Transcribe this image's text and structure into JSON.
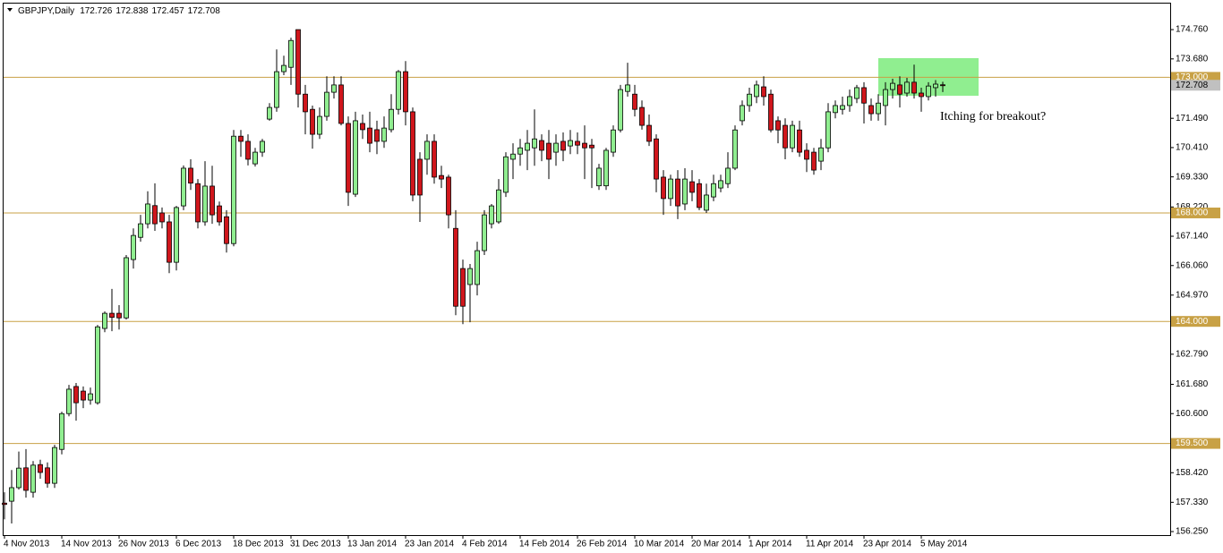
{
  "chart_data": {
    "type": "candlestick",
    "title": "GBPJPY,Daily",
    "annotation": "Itching for breakout?",
    "up_color": "#90ee90",
    "down_color": "#d0161c",
    "level_color": "#c8a145",
    "ylim": [
      156.12,
      175.72
    ],
    "yticks": [
      {
        "value": 174.76,
        "label": "174.760"
      },
      {
        "value": 173.68,
        "label": "173.680"
      },
      {
        "value": 171.49,
        "label": "171.490"
      },
      {
        "value": 170.41,
        "label": "170.410"
      },
      {
        "value": 169.33,
        "label": "169.330"
      },
      {
        "value": 168.22,
        "label": "168.220"
      },
      {
        "value": 167.14,
        "label": "167.140"
      },
      {
        "value": 166.06,
        "label": "166.060"
      },
      {
        "value": 164.97,
        "label": "164.970"
      },
      {
        "value": 162.79,
        "label": "162.790"
      },
      {
        "value": 161.68,
        "label": "161.680"
      },
      {
        "value": 160.6,
        "label": "160.600"
      },
      {
        "value": 158.42,
        "label": "158.420"
      },
      {
        "value": 157.33,
        "label": "157.330"
      },
      {
        "value": 156.25,
        "label": "156.250"
      }
    ],
    "levels": [
      {
        "value": 173,
        "label": "173.000"
      },
      {
        "value": 168,
        "label": "168.000"
      },
      {
        "value": 164,
        "label": "164.000"
      },
      {
        "value": 159.5,
        "label": "159.500"
      }
    ],
    "categories": [
      "4 Nov 2013",
      null,
      null,
      null,
      null,
      null,
      null,
      null,
      "14 Nov 2013",
      null,
      null,
      null,
      null,
      null,
      null,
      null,
      "26 Nov 2013",
      null,
      null,
      null,
      null,
      null,
      null,
      null,
      "6 Dec 2013",
      null,
      null,
      null,
      null,
      null,
      null,
      null,
      "18 Dec 2013",
      null,
      null,
      null,
      null,
      null,
      null,
      null,
      "31 Dec 2013",
      null,
      null,
      null,
      null,
      null,
      null,
      null,
      "13 Jan 2014",
      null,
      null,
      null,
      null,
      null,
      null,
      null,
      "23 Jan 2014",
      null,
      null,
      null,
      null,
      null,
      null,
      null,
      "4 Feb 2014",
      null,
      null,
      null,
      null,
      null,
      null,
      null,
      "14 Feb 2014",
      null,
      null,
      null,
      null,
      null,
      null,
      null,
      "26 Feb 2014",
      null,
      null,
      null,
      null,
      null,
      null,
      null,
      "10 Mar 2014",
      null,
      null,
      null,
      null,
      null,
      null,
      null,
      "20 Mar 2014",
      null,
      null,
      null,
      null,
      null,
      null,
      null,
      "1 Apr 2014",
      null,
      null,
      null,
      null,
      null,
      null,
      null,
      "11 Apr 2014",
      null,
      null,
      null,
      null,
      null,
      null,
      null,
      "23 Apr 2014",
      null,
      null,
      null,
      null,
      null,
      null,
      null,
      "5 May 2014",
      null,
      null,
      null
    ],
    "open": [
      157.3,
      157.37,
      157.87,
      158.6,
      157.7,
      158.72,
      158.6,
      158.03,
      159.28,
      160.6,
      161.6,
      161.43,
      161.1,
      161.0,
      163.74,
      164.3,
      164.3,
      164.13,
      166.28,
      167.1,
      167.6,
      168.27,
      168.0,
      167.67,
      166.18,
      168.26,
      169.65,
      169.08,
      167.67,
      168.99,
      168.26,
      167.86,
      166.87,
      170.83,
      170.64,
      169.81,
      170.24,
      171.46,
      171.89,
      173.21,
      173.37,
      174.76,
      172.38,
      171.82,
      170.9,
      171.56,
      172.45,
      172.72,
      171.3,
      168.69,
      171.3,
      171.13,
      171.07,
      170.64,
      171.07,
      171.82,
      173.21,
      171.73,
      169.98,
      169.98,
      170.64,
      169.38,
      169.32,
      167.43,
      165.95,
      165.36,
      165.36,
      166.61,
      167.6,
      167.67,
      168.76,
      169.98,
      170.17,
      170.31,
      170.4,
      170.67,
      170.57,
      170.24,
      170.64,
      170.47,
      170.64,
      170.57,
      170.5,
      169.0,
      169.0,
      170.24,
      171.06,
      172.48,
      172.38,
      171.89,
      171.23,
      170.73,
      169.32,
      168.53,
      169.25,
      168.33,
      169.15,
      169.08,
      168.1,
      168.59,
      168.92,
      169.08,
      169.65,
      171.4,
      171.96,
      172.29,
      172.65,
      172.38,
      171.4,
      171.23,
      170.4,
      171.06,
      170.31,
      170.24,
      169.91,
      170.4,
      171.7,
      171.82,
      171.96,
      172.22,
      172.62,
      171.96,
      171.66,
      171.96,
      172.55,
      172.72,
      172.42,
      172.82,
      172.42,
      172.29,
      172.62,
      172.726
    ],
    "high": [
      157.7,
      158.52,
      159.2,
      159.29,
      158.85,
      158.9,
      158.8,
      159.45,
      160.67,
      161.66,
      161.73,
      161.6,
      161.56,
      163.87,
      164.37,
      165.2,
      164.6,
      166.45,
      167.43,
      167.93,
      168.8,
      169.09,
      168.2,
      167.93,
      168.26,
      169.75,
      169.98,
      169.25,
      169.91,
      169.74,
      168.42,
      168.1,
      171.06,
      171.06,
      170.9,
      170.4,
      170.73,
      172.05,
      174.03,
      173.8,
      174.46,
      174.76,
      172.72,
      171.96,
      171.89,
      173.04,
      173.04,
      173.04,
      171.56,
      171.73,
      171.63,
      171.73,
      171.4,
      171.56,
      172.38,
      173.27,
      173.6,
      171.89,
      170.24,
      170.9,
      170.9,
      169.74,
      169.41,
      168.1,
      166.28,
      166.12,
      166.94,
      168.1,
      168.33,
      169.25,
      170.24,
      170.57,
      170.73,
      171.06,
      171.82,
      170.9,
      171.06,
      170.9,
      170.97,
      171.06,
      170.97,
      171.23,
      170.73,
      169.81,
      170.4,
      171.23,
      172.72,
      173.54,
      172.72,
      172.15,
      171.63,
      170.9,
      169.58,
      169.41,
      169.58,
      169.65,
      169.58,
      169.25,
      169.08,
      169.41,
      169.41,
      170.24,
      171.23,
      172.15,
      172.62,
      172.88,
      173.04,
      172.55,
      171.56,
      171.49,
      171.4,
      171.4,
      170.57,
      170.4,
      170.73,
      172.05,
      172.15,
      172.29,
      172.55,
      172.72,
      172.82,
      172.22,
      172.38,
      172.82,
      172.95,
      173.04,
      172.98,
      173.47,
      172.62,
      172.82,
      172.9,
      172.838
    ],
    "low": [
      156.7,
      156.55,
      157.8,
      157.5,
      157.5,
      158.2,
      157.87,
      157.86,
      159.1,
      160.5,
      160.34,
      160.8,
      160.93,
      160.93,
      163.6,
      163.64,
      163.7,
      164.07,
      165.95,
      166.94,
      167.43,
      167.34,
      167.43,
      165.78,
      165.88,
      168.1,
      168.85,
      167.43,
      167.53,
      167.6,
      167.53,
      166.54,
      166.77,
      170.07,
      169.75,
      169.71,
      170.07,
      171.4,
      171.73,
      173.08,
      172.72,
      171.89,
      170.9,
      170.37,
      170.73,
      171.4,
      172.22,
      171.23,
      168.26,
      168.59,
      170.73,
      170.24,
      170.17,
      170.4,
      170.97,
      171.63,
      171.23,
      168.43,
      167.67,
      169.41,
      169.08,
      168.92,
      167.43,
      164.23,
      163.9,
      163.97,
      164.96,
      166.45,
      167.43,
      167.6,
      168.59,
      169.25,
      169.74,
      169.58,
      169.74,
      169.91,
      169.25,
      169.74,
      169.91,
      170.17,
      170.17,
      169.25,
      168.92,
      168.85,
      168.85,
      170.07,
      170.97,
      172.29,
      171.56,
      171.07,
      170.47,
      168.76,
      167.93,
      168.26,
      167.77,
      168.1,
      168.43,
      168.1,
      168.0,
      168.43,
      168.76,
      168.92,
      169.58,
      171.23,
      171.73,
      172.05,
      171.96,
      170.97,
      170.57,
      169.98,
      170.24,
      170.07,
      169.51,
      169.41,
      169.58,
      170.24,
      171.49,
      171.63,
      171.73,
      172.05,
      171.3,
      171.4,
      171.4,
      171.23,
      172.22,
      171.89,
      172.29,
      172.22,
      171.73,
      172.15,
      172.29,
      172.457
    ],
    "close": [
      157.25,
      157.87,
      158.59,
      157.77,
      158.7,
      158.43,
      158.03,
      159.35,
      160.6,
      161.5,
      161.0,
      161.1,
      161.33,
      163.8,
      164.3,
      164.15,
      164.13,
      166.35,
      167.17,
      167.6,
      168.33,
      167.6,
      167.67,
      166.18,
      168.2,
      169.65,
      169.1,
      167.67,
      168.99,
      167.93,
      167.67,
      166.87,
      170.83,
      170.64,
      169.98,
      170.24,
      170.64,
      171.89,
      173.21,
      173.44,
      174.36,
      172.38,
      171.73,
      170.9,
      171.56,
      172.45,
      172.72,
      171.3,
      168.76,
      171.4,
      171.07,
      170.57,
      170.64,
      171.13,
      171.82,
      173.21,
      171.73,
      168.66,
      168.66,
      170.64,
      169.32,
      169.25,
      167.93,
      164.56,
      164.56,
      165.95,
      166.61,
      167.93,
      168.26,
      168.85,
      170.07,
      170.17,
      170.4,
      170.57,
      170.73,
      170.31,
      169.98,
      170.57,
      170.31,
      170.67,
      170.5,
      170.4,
      170.4,
      169.65,
      170.31,
      171.06,
      172.55,
      172.72,
      171.82,
      171.23,
      170.64,
      169.25,
      168.53,
      169.25,
      168.26,
      169.25,
      168.76,
      168.2,
      168.66,
      169.08,
      169.19,
      169.65,
      171.06,
      171.96,
      172.38,
      172.72,
      172.29,
      171.06,
      171.06,
      170.4,
      171.23,
      170.24,
      169.98,
      169.58,
      170.4,
      171.73,
      171.96,
      171.96,
      172.29,
      172.62,
      172.05,
      171.66,
      172.05,
      172.55,
      172.78,
      172.38,
      172.82,
      172.42,
      172.29,
      172.68,
      172.75,
      172.708
    ]
  }
}
